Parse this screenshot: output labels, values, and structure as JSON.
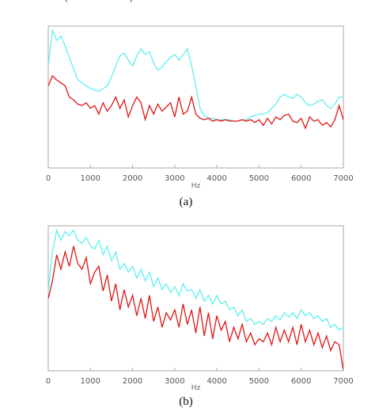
{
  "header": {
    "text": "· · · · · · · (· · · · · · ·)"
  },
  "chart_data": [
    {
      "type": "line",
      "panel_label": "(a)",
      "xlabel": "Hz",
      "ylabel": "",
      "xlim": [
        0,
        7000
      ],
      "ylim": [
        0,
        1
      ],
      "xticks": [
        "0",
        "1000",
        "2000",
        "3000",
        "4000",
        "5000",
        "6000",
        "7000"
      ],
      "colors": {
        "upper": "#5ff0ee",
        "lower": "#e01515"
      },
      "grid": false,
      "x": [
        0,
        100,
        200,
        300,
        400,
        500,
        600,
        700,
        800,
        900,
        1000,
        1100,
        1200,
        1300,
        1400,
        1500,
        1600,
        1700,
        1800,
        1900,
        2000,
        2100,
        2200,
        2300,
        2400,
        2500,
        2600,
        2700,
        2800,
        2900,
        3000,
        3100,
        3200,
        3300,
        3400,
        3500,
        3600,
        3700,
        3800,
        3900,
        4000,
        4100,
        4200,
        4300,
        4400,
        4500,
        4600,
        4700,
        4800,
        4900,
        5000,
        5100,
        5200,
        5300,
        5400,
        5500,
        5600,
        5700,
        5800,
        5900,
        6000,
        6100,
        6200,
        6300,
        6400,
        6500,
        6600,
        6700,
        6800,
        6900,
        7000
      ],
      "series": [
        {
          "values": [
            0.72,
            0.97,
            0.9,
            0.93,
            0.86,
            0.78,
            0.7,
            0.62,
            0.6,
            0.58,
            0.56,
            0.55,
            0.54,
            0.56,
            0.58,
            0.64,
            0.72,
            0.79,
            0.81,
            0.76,
            0.72,
            0.79,
            0.84,
            0.8,
            0.82,
            0.74,
            0.69,
            0.71,
            0.75,
            0.78,
            0.8,
            0.76,
            0.8,
            0.84,
            0.72,
            0.58,
            0.42,
            0.37,
            0.35,
            0.35,
            0.34,
            0.34,
            0.34,
            0.34,
            0.33,
            0.33,
            0.34,
            0.34,
            0.36,
            0.37,
            0.38,
            0.38,
            0.39,
            0.42,
            0.45,
            0.5,
            0.52,
            0.5,
            0.49,
            0.52,
            0.5,
            0.46,
            0.44,
            0.45,
            0.47,
            0.48,
            0.44,
            0.42,
            0.45,
            0.5,
            0.5
          ]
        },
        {
          "values": [
            0.58,
            0.65,
            0.62,
            0.6,
            0.58,
            0.5,
            0.48,
            0.45,
            0.44,
            0.46,
            0.42,
            0.44,
            0.38,
            0.46,
            0.4,
            0.44,
            0.5,
            0.42,
            0.48,
            0.36,
            0.44,
            0.5,
            0.46,
            0.34,
            0.44,
            0.38,
            0.45,
            0.4,
            0.43,
            0.46,
            0.36,
            0.5,
            0.38,
            0.4,
            0.5,
            0.38,
            0.35,
            0.34,
            0.35,
            0.33,
            0.34,
            0.33,
            0.34,
            0.33,
            0.33,
            0.33,
            0.34,
            0.33,
            0.34,
            0.32,
            0.34,
            0.3,
            0.35,
            0.31,
            0.36,
            0.34,
            0.37,
            0.38,
            0.33,
            0.32,
            0.35,
            0.28,
            0.36,
            0.33,
            0.34,
            0.3,
            0.32,
            0.29,
            0.34,
            0.44,
            0.34
          ]
        }
      ]
    },
    {
      "type": "line",
      "panel_label": "(b)",
      "xlabel": "Hz",
      "ylabel": "",
      "xlim": [
        0,
        7000
      ],
      "ylim": [
        0,
        1
      ],
      "xticks": [
        "0",
        "1000",
        "2000",
        "3000",
        "4000",
        "5000",
        "6000",
        "7000"
      ],
      "colors": {
        "upper": "#5ff0ee",
        "lower": "#e01515"
      },
      "grid": false,
      "x": [
        0,
        100,
        200,
        300,
        400,
        500,
        600,
        700,
        800,
        900,
        1000,
        1100,
        1200,
        1300,
        1400,
        1500,
        1600,
        1700,
        1800,
        1900,
        2000,
        2100,
        2200,
        2300,
        2400,
        2500,
        2600,
        2700,
        2800,
        2900,
        3000,
        3100,
        3200,
        3300,
        3400,
        3500,
        3600,
        3700,
        3800,
        3900,
        4000,
        4100,
        4200,
        4300,
        4400,
        4500,
        4600,
        4700,
        4800,
        4900,
        5000,
        5100,
        5200,
        5300,
        5400,
        5500,
        5600,
        5700,
        5800,
        5900,
        6000,
        6100,
        6200,
        6300,
        6400,
        6500,
        6600,
        6700,
        6800,
        6900,
        7000
      ],
      "series": [
        {
          "values": [
            0.55,
            0.82,
            0.97,
            0.9,
            0.96,
            0.93,
            0.97,
            0.9,
            0.88,
            0.92,
            0.86,
            0.84,
            0.9,
            0.8,
            0.86,
            0.76,
            0.82,
            0.7,
            0.74,
            0.68,
            0.72,
            0.64,
            0.7,
            0.62,
            0.68,
            0.58,
            0.64,
            0.56,
            0.6,
            0.54,
            0.58,
            0.52,
            0.6,
            0.55,
            0.56,
            0.5,
            0.56,
            0.48,
            0.52,
            0.46,
            0.52,
            0.46,
            0.48,
            0.42,
            0.44,
            0.38,
            0.42,
            0.34,
            0.36,
            0.32,
            0.34,
            0.32,
            0.36,
            0.34,
            0.38,
            0.35,
            0.4,
            0.37,
            0.4,
            0.36,
            0.42,
            0.38,
            0.4,
            0.36,
            0.38,
            0.34,
            0.36,
            0.3,
            0.32,
            0.28,
            0.3
          ]
        },
        {
          "values": [
            0.5,
            0.62,
            0.8,
            0.7,
            0.82,
            0.72,
            0.86,
            0.74,
            0.7,
            0.78,
            0.6,
            0.68,
            0.72,
            0.55,
            0.66,
            0.48,
            0.6,
            0.42,
            0.56,
            0.44,
            0.52,
            0.38,
            0.5,
            0.36,
            0.52,
            0.34,
            0.44,
            0.3,
            0.4,
            0.35,
            0.42,
            0.3,
            0.46,
            0.32,
            0.42,
            0.26,
            0.44,
            0.24,
            0.4,
            0.22,
            0.38,
            0.28,
            0.34,
            0.2,
            0.3,
            0.22,
            0.32,
            0.2,
            0.26,
            0.18,
            0.22,
            0.2,
            0.26,
            0.18,
            0.3,
            0.2,
            0.28,
            0.2,
            0.3,
            0.18,
            0.32,
            0.2,
            0.28,
            0.18,
            0.26,
            0.16,
            0.24,
            0.14,
            0.2,
            0.18,
            0.0
          ]
        }
      ]
    }
  ]
}
